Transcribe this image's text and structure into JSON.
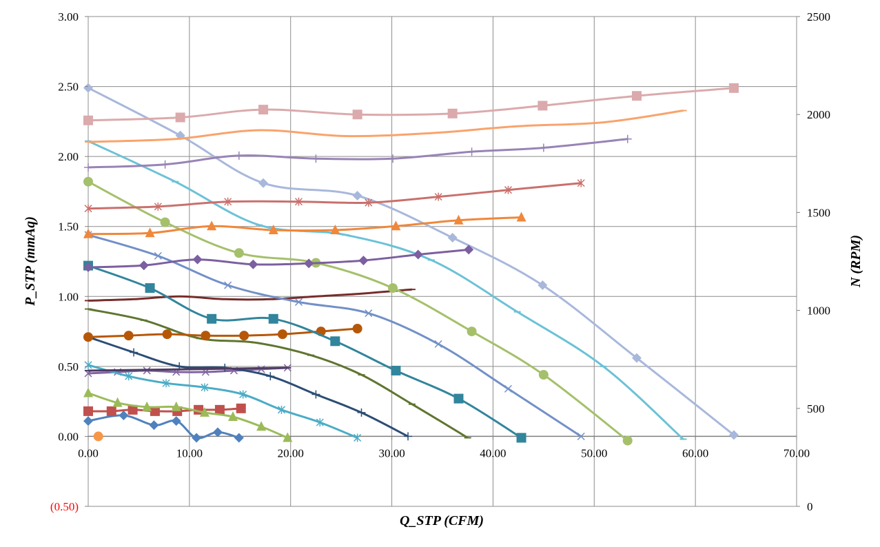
{
  "chart_data": {
    "type": "line",
    "title": "",
    "xlabel": "Q_STP (CFM)",
    "ylabel": "P_STP (mmAq)",
    "y2label": "N (RPM)",
    "xlim": [
      0,
      70
    ],
    "ylim": [
      -0.5,
      3.0
    ],
    "y2lim": [
      0,
      2500
    ],
    "grid": true,
    "legend": "none",
    "x_ticks": [
      "0.00",
      "10.00",
      "20.00",
      "30.00",
      "40.00",
      "50.00",
      "60.00",
      "70.00"
    ],
    "y_ticks": [
      {
        "v": 3.0,
        "label": "3.00",
        "color": "#000000"
      },
      {
        "v": 2.5,
        "label": "2.50",
        "color": "#000000"
      },
      {
        "v": 2.0,
        "label": "2.00",
        "color": "#000000"
      },
      {
        "v": 1.5,
        "label": "1.50",
        "color": "#000000"
      },
      {
        "v": 1.0,
        "label": "1.00",
        "color": "#000000"
      },
      {
        "v": 0.5,
        "label": "0.50",
        "color": "#000000"
      },
      {
        "v": 0.0,
        "label": "0.00",
        "color": "#000000"
      },
      {
        "v": -0.5,
        "label": "(0.50)",
        "color": "#ff0000"
      }
    ],
    "y2_ticks": [
      {
        "v": 2500,
        "label": "2500"
      },
      {
        "v": 2000,
        "label": "2000"
      },
      {
        "v": 1500,
        "label": "1500"
      },
      {
        "v": 1000,
        "label": "1000"
      },
      {
        "v": 500,
        "label": "500"
      },
      {
        "v": 0,
        "label": "0"
      }
    ],
    "series": [
      {
        "axis": "left",
        "color": "#4f81bd",
        "marker": "diamond",
        "points": [
          [
            0,
            0.11
          ],
          [
            3.5,
            0.15
          ],
          [
            6.5,
            0.08
          ],
          [
            8.7,
            0.11
          ],
          [
            10.7,
            -0.01
          ],
          [
            12.8,
            0.03
          ],
          [
            14.9,
            -0.01
          ]
        ]
      },
      {
        "axis": "left",
        "color": "#c0504d",
        "marker": "square",
        "points": [
          [
            0,
            0.18
          ],
          [
            2.3,
            0.18
          ],
          [
            4.4,
            0.19
          ],
          [
            6.6,
            0.18
          ],
          [
            8.8,
            0.18
          ],
          [
            10.9,
            0.19
          ],
          [
            13.0,
            0.19
          ],
          [
            15.1,
            0.2
          ]
        ]
      },
      {
        "axis": "left",
        "color": "#9bbb59",
        "marker": "triangle",
        "points": [
          [
            0,
            0.31
          ],
          [
            2.9,
            0.24
          ],
          [
            5.8,
            0.21
          ],
          [
            8.7,
            0.21
          ],
          [
            11.5,
            0.17
          ],
          [
            14.3,
            0.14
          ],
          [
            17.1,
            0.07
          ],
          [
            19.7,
            -0.01
          ]
        ]
      },
      {
        "axis": "left",
        "color": "#8064a2",
        "marker": "x",
        "points": [
          [
            0,
            0.45
          ],
          [
            2.9,
            0.46
          ],
          [
            5.8,
            0.47
          ],
          [
            8.7,
            0.46
          ],
          [
            11.6,
            0.46
          ],
          [
            14.4,
            0.47
          ],
          [
            17.1,
            0.48
          ],
          [
            19.7,
            0.49
          ]
        ]
      },
      {
        "axis": "left",
        "color": "#4bacc6",
        "marker": "star",
        "points": [
          [
            0,
            0.51
          ],
          [
            4,
            0.43
          ],
          [
            7.7,
            0.38
          ],
          [
            11.5,
            0.35
          ],
          [
            15.3,
            0.3
          ],
          [
            19.1,
            0.19
          ],
          [
            22.9,
            0.1
          ],
          [
            26.6,
            -0.01
          ]
        ]
      },
      {
        "axis": "left",
        "color": "#f79646",
        "marker": "circle",
        "points": [
          [
            1,
            0.0
          ]
        ]
      },
      {
        "axis": "left",
        "color": "#2c4d75",
        "marker": "plus",
        "points": [
          [
            0,
            0.71
          ],
          [
            4.5,
            0.6
          ],
          [
            9,
            0.5
          ],
          [
            13.5,
            0.49
          ],
          [
            18,
            0.43
          ],
          [
            22.5,
            0.3
          ],
          [
            27,
            0.17
          ],
          [
            31.6,
            0.0
          ]
        ]
      },
      {
        "axis": "left",
        "color": "#772c2a",
        "marker": "dash",
        "points": [
          [
            0,
            0.97
          ],
          [
            4.5,
            0.98
          ],
          [
            9,
            1.0
          ],
          [
            13.5,
            0.98
          ],
          [
            18,
            0.98
          ],
          [
            22.5,
            1.0
          ],
          [
            27,
            1.02
          ],
          [
            32,
            1.05
          ]
        ]
      },
      {
        "axis": "left",
        "color": "#5f7530",
        "marker": "dash",
        "points": [
          [
            0,
            0.91
          ],
          [
            5.5,
            0.83
          ],
          [
            11,
            0.7
          ],
          [
            16.5,
            0.67
          ],
          [
            22,
            0.58
          ],
          [
            27,
            0.44
          ],
          [
            32,
            0.23
          ],
          [
            37.5,
            -0.01
          ]
        ]
      },
      {
        "axis": "left",
        "color": "#4d3b62",
        "marker": "dash",
        "points": [
          [
            0,
            0.47
          ],
          [
            19.7,
            0.49
          ]
        ]
      },
      {
        "axis": "left",
        "color": "#b65708",
        "marker": "circle",
        "points": [
          [
            0,
            0.71
          ],
          [
            4,
            0.72
          ],
          [
            7.8,
            0.73
          ],
          [
            11.6,
            0.72
          ],
          [
            15.4,
            0.72
          ],
          [
            19.2,
            0.73
          ],
          [
            23,
            0.75
          ],
          [
            26.6,
            0.77
          ]
        ]
      },
      {
        "axis": "left",
        "color": "#31859c",
        "marker": "square",
        "points": [
          [
            0,
            1.22
          ],
          [
            6.1,
            1.06
          ],
          [
            12.2,
            0.84
          ],
          [
            18.3,
            0.84
          ],
          [
            24.4,
            0.68
          ],
          [
            30.4,
            0.47
          ],
          [
            36.6,
            0.27
          ],
          [
            42.8,
            -0.01
          ]
        ]
      },
      {
        "axis": "left",
        "color": "#7290c8",
        "marker": "x",
        "points": [
          [
            0,
            1.44
          ],
          [
            6.9,
            1.29
          ],
          [
            13.8,
            1.08
          ],
          [
            20.8,
            0.96
          ],
          [
            27.7,
            0.88
          ],
          [
            34.6,
            0.66
          ],
          [
            41.5,
            0.34
          ],
          [
            48.7,
            0.0
          ]
        ]
      },
      {
        "axis": "left",
        "color": "#a5c06b",
        "marker": "circle",
        "points": [
          [
            0,
            1.82
          ],
          [
            7.6,
            1.53
          ],
          [
            14.9,
            1.31
          ],
          [
            22.5,
            1.24
          ],
          [
            30.1,
            1.06
          ],
          [
            37.9,
            0.75
          ],
          [
            45,
            0.44
          ],
          [
            53.3,
            -0.03
          ]
        ]
      },
      {
        "axis": "left",
        "color": "#6bc2d6",
        "marker": "dash",
        "points": [
          [
            0,
            2.11
          ],
          [
            8.6,
            1.82
          ],
          [
            16.9,
            1.51
          ],
          [
            25.4,
            1.44
          ],
          [
            33.9,
            1.26
          ],
          [
            42.4,
            0.89
          ],
          [
            50.9,
            0.5
          ],
          [
            58.8,
            -0.02
          ]
        ]
      },
      {
        "axis": "left",
        "color": "#a8b8dc",
        "marker": "diamond",
        "points": [
          [
            0,
            2.49
          ],
          [
            9.1,
            2.15
          ],
          [
            17.3,
            1.81
          ],
          [
            26.6,
            1.72
          ],
          [
            36,
            1.42
          ],
          [
            44.9,
            1.08
          ],
          [
            54.2,
            0.56
          ],
          [
            63.8,
            0.01
          ]
        ]
      },
      {
        "axis": "right",
        "color": "#7b5fa0",
        "marker": "diamond",
        "points": [
          [
            0,
            1220
          ],
          [
            5.5,
            1230
          ],
          [
            10.8,
            1260
          ],
          [
            16.3,
            1235
          ],
          [
            21.8,
            1240
          ],
          [
            27.2,
            1255
          ],
          [
            32.6,
            1285
          ],
          [
            37.6,
            1310
          ]
        ]
      },
      {
        "axis": "right",
        "color": "#f0873a",
        "marker": "triangle",
        "points": [
          [
            0,
            1390
          ],
          [
            6.1,
            1395
          ],
          [
            12.2,
            1430
          ],
          [
            18.3,
            1410
          ],
          [
            24.4,
            1410
          ],
          [
            30.4,
            1430
          ],
          [
            36.6,
            1460
          ],
          [
            42.8,
            1475
          ]
        ]
      },
      {
        "axis": "right",
        "color": "#c9706c",
        "marker": "star",
        "points": [
          [
            0,
            1520
          ],
          [
            6.9,
            1530
          ],
          [
            13.8,
            1555
          ],
          [
            20.8,
            1555
          ],
          [
            27.7,
            1550
          ],
          [
            34.6,
            1580
          ],
          [
            41.5,
            1615
          ],
          [
            48.7,
            1650
          ]
        ]
      },
      {
        "axis": "right",
        "color": "#9883b6",
        "marker": "plus",
        "points": [
          [
            0,
            1730
          ],
          [
            7.6,
            1745
          ],
          [
            14.9,
            1790
          ],
          [
            22.5,
            1775
          ],
          [
            30.1,
            1775
          ],
          [
            37.9,
            1810
          ],
          [
            45,
            1830
          ],
          [
            53.3,
            1875
          ]
        ]
      },
      {
        "axis": "right",
        "color": "#f9a36c",
        "marker": "dash",
        "points": [
          [
            0,
            1860
          ],
          [
            8.6,
            1875
          ],
          [
            16.9,
            1920
          ],
          [
            25.4,
            1890
          ],
          [
            33.9,
            1905
          ],
          [
            42.4,
            1940
          ],
          [
            50.9,
            1960
          ],
          [
            58.8,
            2020
          ]
        ]
      },
      {
        "axis": "right",
        "color": "#dbaaac",
        "marker": "square",
        "points": [
          [
            0,
            1970
          ],
          [
            9.1,
            1985
          ],
          [
            17.3,
            2025
          ],
          [
            26.6,
            2000
          ],
          [
            36,
            2005
          ],
          [
            44.9,
            2045
          ],
          [
            54.2,
            2095
          ],
          [
            63.8,
            2135
          ]
        ]
      }
    ]
  }
}
